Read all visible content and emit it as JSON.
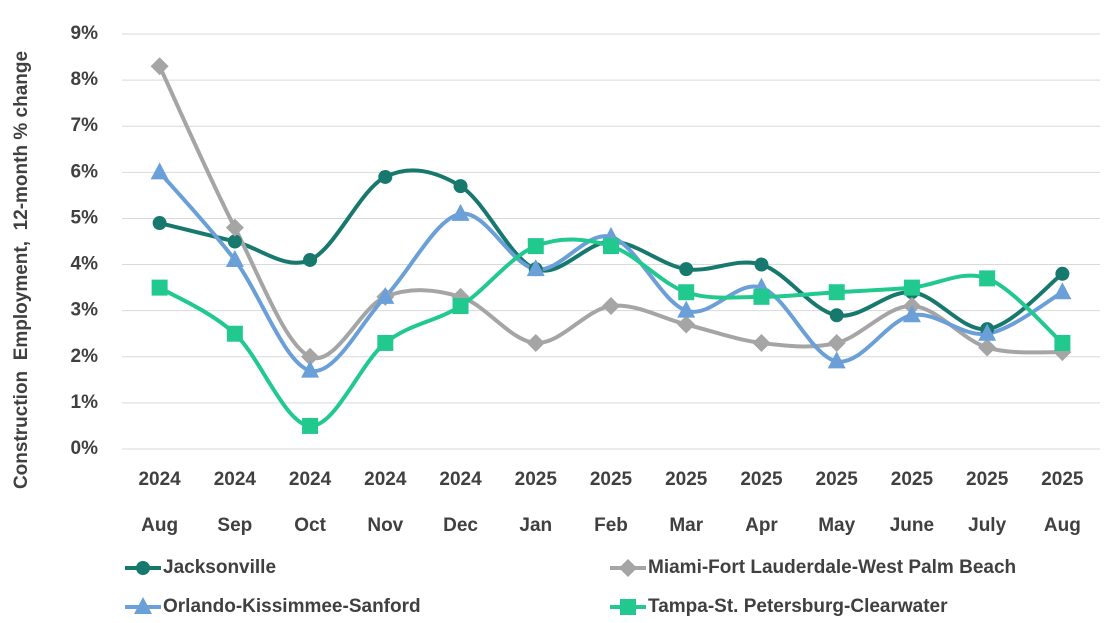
{
  "chart_data": {
    "type": "line",
    "y_label": "Construction  Employment,  12-month % change",
    "categories": [
      [
        "2024",
        "Aug"
      ],
      [
        "2024",
        "Sep"
      ],
      [
        "2024",
        "Oct"
      ],
      [
        "2024",
        "Nov"
      ],
      [
        "2024",
        "Dec"
      ],
      [
        "2025",
        "Jan"
      ],
      [
        "2025",
        "Feb"
      ],
      [
        "2025",
        "Mar"
      ],
      [
        "2025",
        "Apr"
      ],
      [
        "2025",
        "May"
      ],
      [
        "2025",
        "June"
      ],
      [
        "2025",
        "July"
      ],
      [
        "2025",
        "Aug"
      ]
    ],
    "series": [
      {
        "name": "Jacksonville",
        "color": "#17786e",
        "marker": "circle",
        "values": [
          4.9,
          4.5,
          4.1,
          5.9,
          5.7,
          3.9,
          4.5,
          3.9,
          4.0,
          2.9,
          3.4,
          2.6,
          3.8
        ]
      },
      {
        "name": "Miami-Fort Lauderdale-West Palm Beach",
        "color": "#a5a5a5",
        "marker": "diamond",
        "values": [
          8.3,
          4.8,
          2.0,
          3.3,
          3.3,
          2.3,
          3.1,
          2.7,
          2.3,
          2.3,
          3.1,
          2.2,
          2.1
        ]
      },
      {
        "name": "Orlando-Kissimmee-Sanford",
        "color": "#6a9fd8",
        "marker": "triangle",
        "values": [
          6.0,
          4.1,
          1.7,
          3.3,
          5.1,
          3.9,
          4.6,
          3.0,
          3.5,
          1.9,
          2.9,
          2.5,
          3.4
        ]
      },
      {
        "name": "Tampa-St. Petersburg-Clearwater",
        "color": "#22c98f",
        "marker": "square",
        "values": [
          3.5,
          2.5,
          0.5,
          2.3,
          3.1,
          4.4,
          4.4,
          3.4,
          3.3,
          3.4,
          3.5,
          3.7,
          2.3
        ]
      }
    ],
    "ylim": [
      0,
      9
    ],
    "yticks": [
      {
        "value": 0,
        "label": "0%"
      },
      {
        "value": 1,
        "label": "1%"
      },
      {
        "value": 2,
        "label": "2%"
      },
      {
        "value": 3,
        "label": "3%"
      },
      {
        "value": 4,
        "label": "4%"
      },
      {
        "value": 5,
        "label": "5%"
      },
      {
        "value": 6,
        "label": "6%"
      },
      {
        "value": 7,
        "label": "7%"
      },
      {
        "value": 8,
        "label": "8%"
      },
      {
        "value": 9,
        "label": "9%"
      }
    ],
    "grid": true
  }
}
